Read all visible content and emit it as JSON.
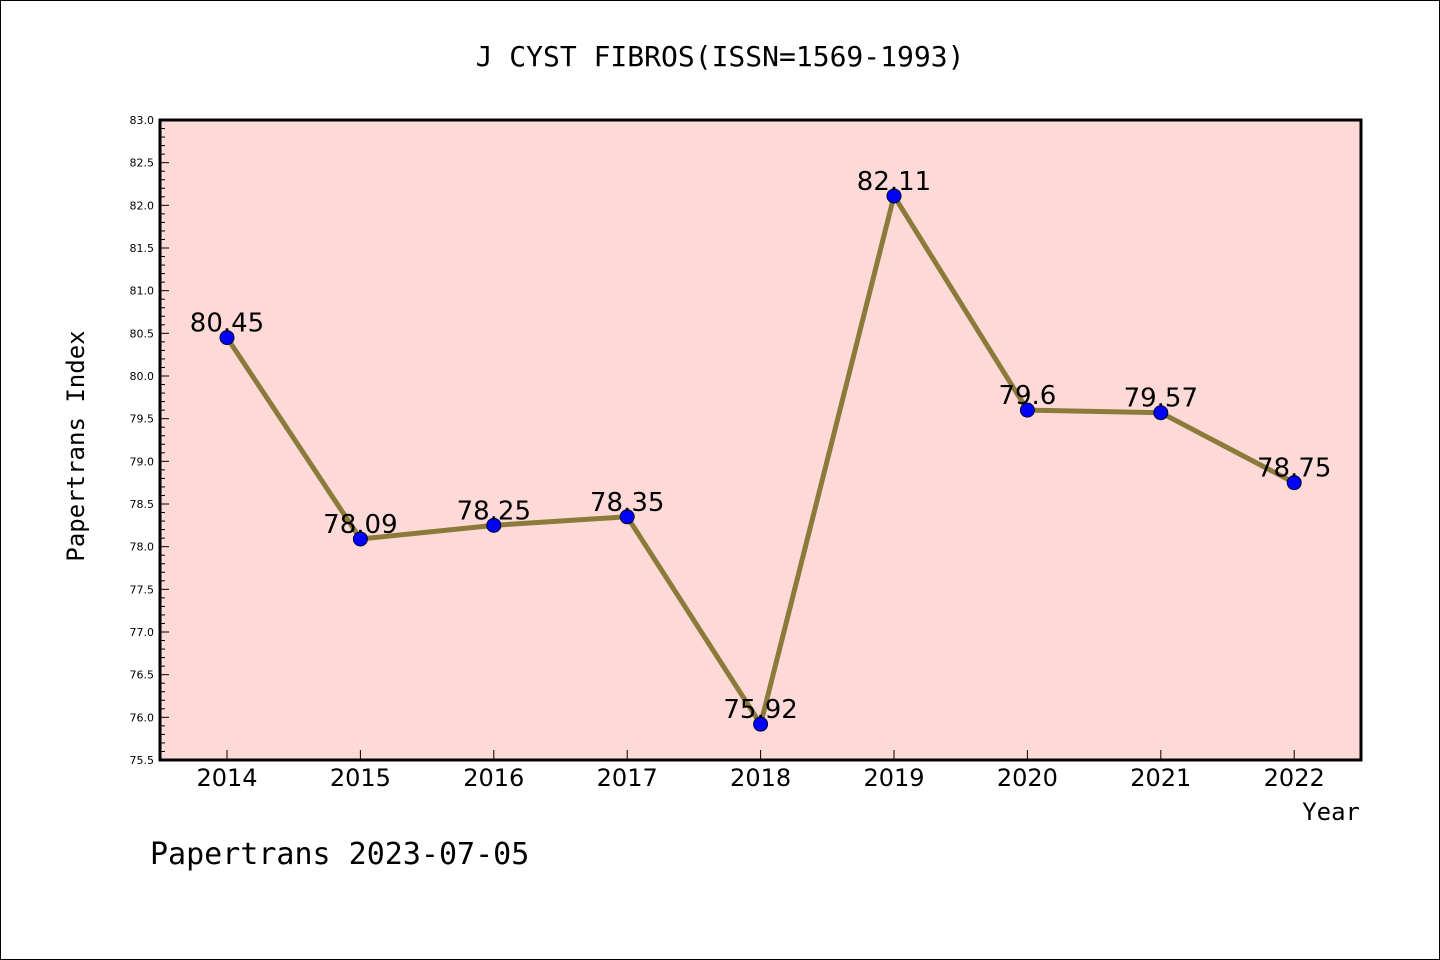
{
  "footer": {
    "text": "Papertrans 2023-07-05"
  },
  "colors": {
    "plot_background": "#fddad7",
    "line": "#8b7a3a",
    "marker": "#0000ff",
    "axis": "#000000"
  },
  "chart_data": {
    "type": "line",
    "title": "J CYST FIBROS(ISSN=1569-1993)",
    "xlabel": "Year",
    "ylabel": "Papertrans Index",
    "categories": [
      "2014",
      "2015",
      "2016",
      "2017",
      "2018",
      "2019",
      "2020",
      "2021",
      "2022"
    ],
    "values": [
      80.45,
      78.09,
      78.25,
      78.35,
      75.92,
      82.11,
      79.6,
      79.57,
      78.75
    ],
    "data_labels": [
      "80.45",
      "78.09",
      "78.25",
      "78.35",
      "75.92",
      "82.11",
      "79.6",
      "79.57",
      "78.75"
    ],
    "ylim": [
      75.5,
      83.0
    ],
    "yticks": [
      75.5,
      76.0,
      76.5,
      77.0,
      77.5,
      78.0,
      78.5,
      79.0,
      79.5,
      80.0,
      80.5,
      81.0,
      81.5,
      82.0,
      82.5,
      83.0
    ],
    "ytick_labels": [
      "75.5",
      "76.0",
      "76.5",
      "77.0",
      "77.5",
      "78.0",
      "78.5",
      "79.0",
      "79.5",
      "80.0",
      "80.5",
      "81.0",
      "81.5",
      "82.0",
      "82.5",
      "83.0"
    ],
    "grid": false,
    "legend": "none"
  }
}
